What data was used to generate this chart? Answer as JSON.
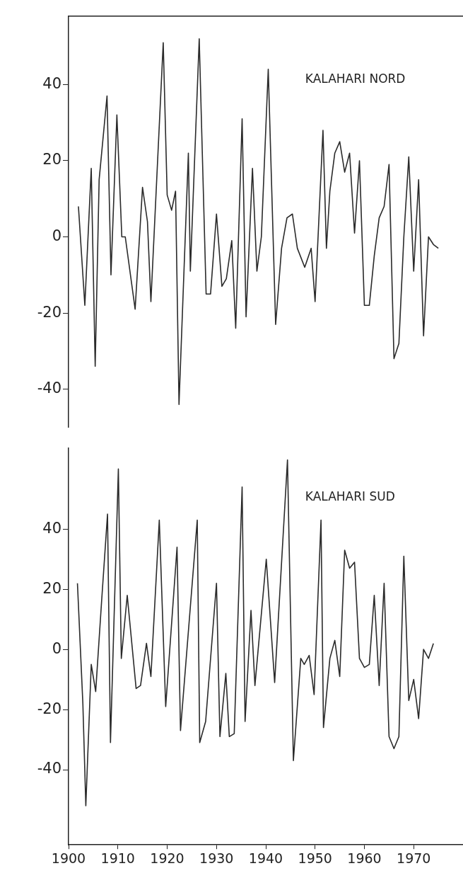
{
  "chart_data": [
    {
      "type": "line",
      "title": "KALAHARI NORD",
      "color": "#2a2a2a",
      "marker": "none",
      "line_style": "solid",
      "grid": false,
      "legend": false,
      "tick_labels": "y",
      "x": [
        1902.0,
        1903.3,
        1904.6,
        1905.4,
        1906.2,
        1907.8,
        1908.6,
        1909.8,
        1910.8,
        1911.5,
        1913.5,
        1915.0,
        1916.0,
        1916.7,
        1919.2,
        1920.0,
        1920.9,
        1921.7,
        1922.4,
        1924.3,
        1924.7,
        1926.5,
        1927.9,
        1928.8,
        1930.0,
        1931.1,
        1932.0,
        1933.1,
        1933.9,
        1935.2,
        1936.0,
        1937.3,
        1938.2,
        1939.1,
        1940.5,
        1942.0,
        1943.2,
        1944.3,
        1945.4,
        1946.4,
        1947.9,
        1949.2,
        1950.0,
        1951.6,
        1952.3,
        1953,
        1954,
        1955,
        1956,
        1957,
        1958,
        1959,
        1960,
        1961,
        1962,
        1963,
        1964,
        1965,
        1966,
        1967,
        1968,
        1969,
        1970,
        1971,
        1972,
        1973,
        1974,
        1975
      ],
      "values": [
        8,
        -18,
        18,
        -34,
        15,
        37,
        -10,
        32,
        0,
        0,
        -19,
        13,
        4,
        -17,
        51,
        11,
        7,
        12,
        -44,
        22,
        -9,
        52,
        -15,
        -15,
        6,
        -13,
        -11,
        -1,
        -24,
        31,
        -21,
        18,
        -9,
        0,
        44,
        -23,
        -3,
        5,
        6,
        -3,
        -8,
        -3,
        -17,
        28,
        -3,
        12,
        22,
        25,
        17,
        22,
        1,
        20,
        -18,
        -18,
        -5,
        5,
        8,
        19,
        -32,
        -28,
        0,
        21,
        -9,
        15,
        -26,
        0,
        -2,
        -3
      ],
      "xlim": [
        1900,
        1980
      ],
      "xticks": [
        1900,
        1910,
        1920,
        1930,
        1940,
        1950,
        1960,
        1970
      ],
      "ylim": [
        -50,
        58
      ],
      "yticks": [
        -40,
        -20,
        0,
        20,
        40
      ]
    },
    {
      "type": "line",
      "title": "KALAHARI SUD",
      "color": "#2a2a2a",
      "marker": "none",
      "line_style": "solid",
      "grid": false,
      "legend": false,
      "x": [
        1901.8,
        1902.9,
        1903.5,
        1904.6,
        1905.5,
        1906.7,
        1907.9,
        1908.5,
        1910.1,
        1910.7,
        1911.9,
        1913.7,
        1914.6,
        1915.8,
        1916.7,
        1918.4,
        1919.7,
        1922.0,
        1922.7,
        1926.1,
        1926.6,
        1927.8,
        1930.0,
        1930.7,
        1931.9,
        1932.6,
        1933.6,
        1935.2,
        1935.8,
        1937.0,
        1937.8,
        1940.1,
        1941.8,
        1944.4,
        1945.6,
        1947.1,
        1947.8,
        1948.8,
        1949.8,
        1951.2,
        1951.7,
        1953,
        1954,
        1955,
        1956,
        1957,
        1958,
        1959,
        1960,
        1961,
        1962,
        1963,
        1964,
        1965,
        1966,
        1967,
        1968,
        1969,
        1970,
        1971,
        1972,
        1973,
        1974
      ],
      "values": [
        22,
        -18,
        -52,
        -5,
        -14,
        16,
        45,
        -31,
        60,
        -3,
        18,
        -13,
        -12,
        2,
        -9,
        43,
        -19,
        34,
        -27,
        43,
        -31,
        -24,
        22,
        -29,
        -8,
        -29,
        -28,
        54,
        -24,
        13,
        -12,
        30,
        -11,
        63,
        -37,
        -3,
        -5,
        -2,
        -15,
        43,
        -26,
        -3,
        3,
        -9,
        33,
        27,
        29,
        -3,
        -6,
        -5,
        18,
        -12,
        22,
        -29,
        -33,
        -29,
        31,
        -17,
        -10,
        -23,
        0,
        -3,
        2
      ],
      "xlim": [
        1900,
        1980
      ],
      "xticks": [
        1900,
        1910,
        1920,
        1930,
        1940,
        1950,
        1960,
        1970
      ],
      "ylim": [
        -65,
        67
      ],
      "yticks": [
        -40,
        -20,
        0,
        20,
        40
      ]
    }
  ]
}
